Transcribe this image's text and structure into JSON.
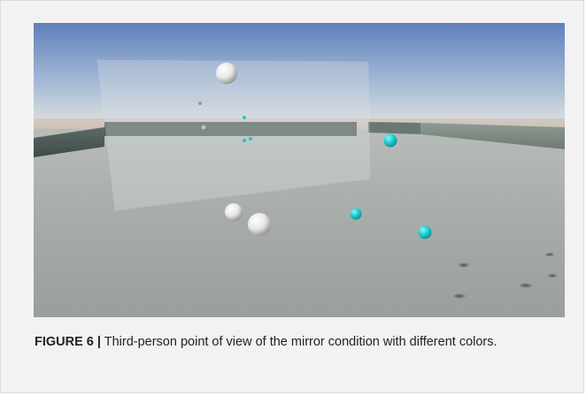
{
  "figure": {
    "label": "FIGURE 6 |",
    "caption": " Third-person point of view of the mirror condition with different colors."
  },
  "scene": {
    "description_colors": {
      "sky_top": "#6f8fc4",
      "sky_horizon": "#d8dce0",
      "ground": "#a9aeab",
      "wall": "#4d5955",
      "white_sphere": "#f2f2f2",
      "cyan_sphere": "#1fd6d6"
    }
  }
}
